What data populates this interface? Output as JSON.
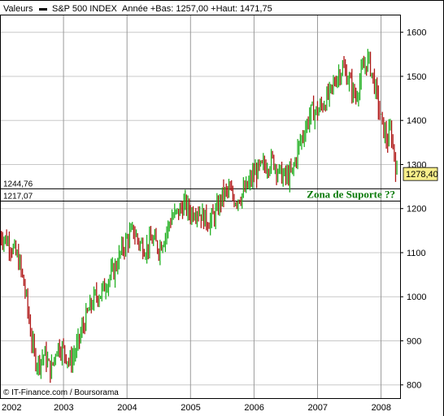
{
  "header": {
    "valeurs_label": "Valeurs",
    "series_name": "S&P 500 INDEX",
    "range_text": "Année +Bas: 1257,00 +Haut: 1471,75"
  },
  "footer": {
    "copyright": "© IT-Finance.com / Boursorama"
  },
  "annotation": {
    "support_text": "Zona de Suporte ??"
  },
  "price_badge": "1278,40",
  "levels": [
    "1244,76",
    "1217,07"
  ],
  "colors": {
    "up": "#22b022",
    "down": "#b01818",
    "annotation": "#0a7a0a",
    "badge": "#f7ee8a",
    "grid": "#9a9a9a"
  },
  "chart_data": {
    "type": "line",
    "title": "S&P 500 INDEX",
    "x_tick_labels": [
      "2002",
      "2003",
      "2004",
      "2005",
      "2006",
      "2007",
      "2008"
    ],
    "y_tick_labels": [
      "800",
      "900",
      "1000",
      "1100",
      "1200",
      "1300",
      "1400",
      "1500",
      "1600"
    ],
    "ylim": [
      770,
      1640
    ],
    "xlim": [
      2002.0,
      2008.3
    ],
    "horizontal_levels": [
      1244.76,
      1217.07
    ],
    "last_value": 1278.4,
    "grid": true,
    "series": [
      {
        "x": [
          2002.0,
          2002.1,
          2002.2,
          2002.3,
          2002.4,
          2002.5,
          2002.55,
          2002.6,
          2002.7,
          2002.8,
          2002.9,
          2003.0,
          2003.1,
          2003.2,
          2003.3,
          2003.4,
          2003.5,
          2003.6,
          2003.7,
          2003.8,
          2003.9,
          2004.0,
          2004.1,
          2004.2,
          2004.3,
          2004.4,
          2004.5,
          2004.6,
          2004.7,
          2004.8,
          2004.9,
          2005.0,
          2005.1,
          2005.2,
          2005.3,
          2005.4,
          2005.5,
          2005.6,
          2005.7,
          2005.8,
          2005.9,
          2006.0,
          2006.1,
          2006.2,
          2006.3,
          2006.4,
          2006.5,
          2006.6,
          2006.7,
          2006.8,
          2006.9,
          2007.0,
          2007.1,
          2007.2,
          2007.3,
          2007.4,
          2007.5,
          2007.6,
          2007.7,
          2007.8,
          2007.9,
          2008.0,
          2008.1,
          2008.15,
          2008.2,
          2008.25
        ],
        "values": [
          1140,
          1130,
          1110,
          1080,
          1010,
          900,
          860,
          850,
          870,
          830,
          890,
          880,
          850,
          880,
          930,
          970,
          1000,
          1010,
          1040,
          1060,
          1100,
          1130,
          1150,
          1120,
          1110,
          1130,
          1110,
          1140,
          1180,
          1190,
          1210,
          1190,
          1200,
          1180,
          1170,
          1190,
          1230,
          1240,
          1220,
          1230,
          1250,
          1280,
          1290,
          1300,
          1310,
          1280,
          1270,
          1280,
          1340,
          1380,
          1420,
          1420,
          1440,
          1460,
          1500,
          1520,
          1490,
          1450,
          1510,
          1540,
          1480,
          1400,
          1350,
          1380,
          1330,
          1275
        ]
      }
    ]
  }
}
